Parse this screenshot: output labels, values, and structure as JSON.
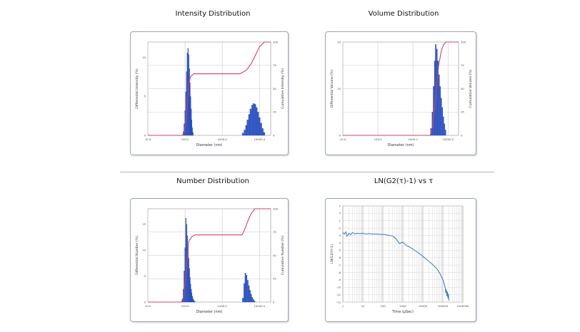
{
  "titles": {
    "intensity": "Intensity Distribution",
    "volume": "Volume Distribution",
    "number": "Number Distribution",
    "ln": "LN(G2(τ)-1) vs τ"
  },
  "colors": {
    "bar": "#2e55c9",
    "cumulative": "#cc4466",
    "line": "#3a78c8",
    "grid": "#c8c8c8"
  },
  "chart_data": [
    {
      "id": "intensity",
      "type": "bar",
      "title": "Intensity Distribution",
      "xlabel": "Diameter (nm)",
      "ylabel": "Differential Intensity (%)",
      "y2label": "Cumulative Intensity (%)",
      "xscale": "log",
      "xlim": [
        10,
        20000
      ],
      "ylim": [
        0,
        12
      ],
      "y2lim": [
        0,
        100
      ],
      "xticks": [
        [
          10,
          "10.0"
        ],
        [
          100,
          "100.0"
        ],
        [
          1000,
          "1000.0"
        ],
        [
          10000,
          "10000.0"
        ]
      ],
      "yticks": [
        [
          0,
          "0"
        ],
        [
          5,
          "5"
        ],
        [
          10,
          "10"
        ]
      ],
      "y2ticks": [
        [
          0,
          "0"
        ],
        [
          25,
          "25"
        ],
        [
          50,
          "50"
        ],
        [
          75,
          "75"
        ],
        [
          100,
          "100"
        ]
      ],
      "grid": true,
      "bars": [
        [
          90,
          0.5
        ],
        [
          95,
          1.5
        ],
        [
          100,
          3.2
        ],
        [
          105,
          5.6
        ],
        [
          110,
          8.2
        ],
        [
          115,
          10.6
        ],
        [
          120,
          11.2
        ],
        [
          125,
          10.4
        ],
        [
          130,
          8.6
        ],
        [
          135,
          6.8
        ],
        [
          140,
          5
        ],
        [
          145,
          3.4
        ],
        [
          150,
          2
        ],
        [
          155,
          1
        ],
        [
          160,
          0.4
        ],
        [
          3600,
          0.3
        ],
        [
          4000,
          0.7
        ],
        [
          4400,
          1.3
        ],
        [
          4800,
          2
        ],
        [
          5300,
          2.7
        ],
        [
          5800,
          3.4
        ],
        [
          6400,
          3.9
        ],
        [
          7000,
          4.1
        ],
        [
          7700,
          4
        ],
        [
          8400,
          3.6
        ],
        [
          9200,
          3
        ],
        [
          10100,
          2.3
        ],
        [
          11100,
          1.6
        ],
        [
          12200,
          0.9
        ],
        [
          13400,
          0.4
        ]
      ],
      "cumulative": [
        [
          10,
          0
        ],
        [
          85,
          0
        ],
        [
          95,
          4
        ],
        [
          105,
          15
        ],
        [
          115,
          35
        ],
        [
          125,
          55
        ],
        [
          140,
          63
        ],
        [
          170,
          66
        ],
        [
          3000,
          66
        ],
        [
          4500,
          70
        ],
        [
          6000,
          77
        ],
        [
          8000,
          87
        ],
        [
          10000,
          95
        ],
        [
          13500,
          100
        ],
        [
          20000,
          100
        ]
      ]
    },
    {
      "id": "volume",
      "type": "bar",
      "title": "Volume Distribution",
      "xlabel": "Diameter (nm)",
      "ylabel": "Differential Volume (%)",
      "y2label": "Cumulative Volume (%)",
      "xscale": "log",
      "xlim": [
        10,
        20000
      ],
      "ylim": [
        0,
        20
      ],
      "y2lim": [
        0,
        100
      ],
      "xticks": [
        [
          10,
          "10.0"
        ],
        [
          100,
          "100.0"
        ],
        [
          1000,
          "1000.0"
        ],
        [
          10000,
          "10000.0"
        ]
      ],
      "yticks": [
        [
          0,
          "0"
        ],
        [
          10,
          "10"
        ],
        [
          20,
          "20"
        ]
      ],
      "y2ticks": [
        [
          0,
          "0"
        ],
        [
          25,
          "25"
        ],
        [
          50,
          "50"
        ],
        [
          75,
          "75"
        ],
        [
          100,
          "100"
        ]
      ],
      "grid": true,
      "bars": [
        [
          3300,
          1.5
        ],
        [
          3600,
          5
        ],
        [
          3900,
          10.5
        ],
        [
          4200,
          16
        ],
        [
          4500,
          19.5
        ],
        [
          4850,
          18.5
        ],
        [
          5200,
          16
        ],
        [
          5600,
          13
        ],
        [
          6000,
          10.5
        ],
        [
          6450,
          8
        ],
        [
          6900,
          6
        ],
        [
          7400,
          4
        ],
        [
          7950,
          2.5
        ],
        [
          8500,
          1.2
        ]
      ],
      "cumulative": [
        [
          10,
          0
        ],
        [
          3100,
          0
        ],
        [
          3600,
          10
        ],
        [
          4200,
          30
        ],
        [
          4800,
          55
        ],
        [
          5400,
          75
        ],
        [
          6400,
          90
        ],
        [
          7400,
          97
        ],
        [
          8700,
          100
        ],
        [
          20000,
          100
        ]
      ]
    },
    {
      "id": "number",
      "type": "bar",
      "title": "Number Distribution",
      "xlabel": "Diameter (nm)",
      "ylabel": "Differential Number (%)",
      "y2label": "Cumulative Number (%)",
      "xscale": "log",
      "xlim": [
        10,
        20000
      ],
      "ylim": [
        0,
        18
      ],
      "y2lim": [
        0,
        100
      ],
      "xticks": [
        [
          10,
          "10.0"
        ],
        [
          100,
          "100.0"
        ],
        [
          1000,
          "1000.0"
        ],
        [
          10000,
          "10000.0"
        ]
      ],
      "yticks": [
        [
          0,
          "0"
        ],
        [
          5,
          "5"
        ],
        [
          10,
          "10"
        ],
        [
          15,
          "15"
        ]
      ],
      "y2ticks": [
        [
          0,
          "0"
        ],
        [
          25,
          "25"
        ],
        [
          50,
          "50"
        ],
        [
          75,
          "75"
        ],
        [
          100,
          "100"
        ]
      ],
      "grid": true,
      "bars": [
        [
          85,
          0.6
        ],
        [
          90,
          2.5
        ],
        [
          95,
          6
        ],
        [
          100,
          10.5
        ],
        [
          105,
          16.2
        ],
        [
          110,
          15
        ],
        [
          115,
          12.8
        ],
        [
          120,
          10.5
        ],
        [
          125,
          8.5
        ],
        [
          130,
          6.5
        ],
        [
          135,
          4.8
        ],
        [
          140,
          3.5
        ],
        [
          145,
          2.5
        ],
        [
          150,
          1.8
        ],
        [
          155,
          1.2
        ],
        [
          160,
          0.8
        ],
        [
          165,
          0.5
        ],
        [
          170,
          0.3
        ],
        [
          180,
          0.2
        ],
        [
          3600,
          0.8
        ],
        [
          3900,
          3.6
        ],
        [
          4200,
          5.6
        ],
        [
          4500,
          5.2
        ],
        [
          4850,
          4.2
        ],
        [
          5200,
          3.2
        ],
        [
          5600,
          2.3
        ],
        [
          6000,
          1.5
        ],
        [
          6450,
          0.9
        ],
        [
          6900,
          0.5
        ],
        [
          7400,
          0.2
        ]
      ],
      "cumulative": [
        [
          10,
          0
        ],
        [
          80,
          0
        ],
        [
          90,
          5
        ],
        [
          100,
          20
        ],
        [
          110,
          40
        ],
        [
          125,
          65
        ],
        [
          150,
          70
        ],
        [
          190,
          72
        ],
        [
          3400,
          72
        ],
        [
          4000,
          78
        ],
        [
          5000,
          88
        ],
        [
          6000,
          95
        ],
        [
          7500,
          100
        ],
        [
          20000,
          100
        ]
      ]
    },
    {
      "id": "ln",
      "type": "line",
      "title": "LN(G2(τ)-1) vs τ",
      "xlabel": "Time (µSec)",
      "ylabel": "LN(G2(τ)-1)",
      "xscale": "log",
      "xlim": [
        1,
        1000000
      ],
      "ylim": [
        -12,
        1
      ],
      "xticks": [
        [
          1,
          "1"
        ],
        [
          10,
          "10"
        ],
        [
          100,
          "100"
        ],
        [
          1000,
          "1000"
        ],
        [
          10000,
          "10000"
        ],
        [
          100000,
          "100000"
        ],
        [
          1000000,
          "1000000"
        ]
      ],
      "yticks": [
        [
          1,
          "1"
        ],
        [
          0,
          "0"
        ],
        [
          -1,
          "-1"
        ],
        [
          -2,
          "-2"
        ],
        [
          -3,
          "-3"
        ],
        [
          -4,
          "-4"
        ],
        [
          -5,
          "-5"
        ],
        [
          -6,
          "-6"
        ],
        [
          -7,
          "-7"
        ],
        [
          -8,
          "-8"
        ],
        [
          -9,
          "-9"
        ],
        [
          -10,
          "-10"
        ],
        [
          -11,
          "-11"
        ],
        [
          -12,
          "-12"
        ]
      ],
      "grid": true,
      "points": [
        [
          1,
          -2.6
        ],
        [
          1.2,
          -2.8
        ],
        [
          1.4,
          -2.5
        ],
        [
          1.6,
          -3.1
        ],
        [
          2,
          -2.7
        ],
        [
          2.4,
          -2.9
        ],
        [
          3,
          -2.6
        ],
        [
          4,
          -2.8
        ],
        [
          5,
          -2.7
        ],
        [
          7,
          -2.75
        ],
        [
          10,
          -2.7
        ],
        [
          15,
          -2.8
        ],
        [
          20,
          -2.75
        ],
        [
          30,
          -2.8
        ],
        [
          50,
          -2.8
        ],
        [
          70,
          -2.85
        ],
        [
          100,
          -2.85
        ],
        [
          150,
          -2.9
        ],
        [
          200,
          -3.0
        ],
        [
          300,
          -3.05
        ],
        [
          400,
          -3.3
        ],
        [
          500,
          -3.6
        ],
        [
          600,
          -3.9
        ],
        [
          700,
          -4.1
        ],
        [
          800,
          -4.0
        ],
        [
          1000,
          -3.9
        ],
        [
          1300,
          -4.2
        ],
        [
          1600,
          -4.4
        ],
        [
          2000,
          -4.5
        ],
        [
          3000,
          -4.8
        ],
        [
          5000,
          -5.2
        ],
        [
          8000,
          -5.6
        ],
        [
          12000,
          -6.0
        ],
        [
          20000,
          -6.5
        ],
        [
          30000,
          -6.9
        ],
        [
          50000,
          -7.5
        ],
        [
          70000,
          -8.1
        ],
        [
          90000,
          -8.7
        ],
        [
          110000,
          -9.3
        ],
        [
          130000,
          -10.0
        ],
        [
          140000,
          -10.8
        ],
        [
          150000,
          -10.3
        ],
        [
          160000,
          -11.2
        ],
        [
          170000,
          -10.6
        ],
        [
          180000,
          -11.5
        ],
        [
          190000,
          -10.9
        ],
        [
          200000,
          -11.8
        ]
      ]
    }
  ]
}
